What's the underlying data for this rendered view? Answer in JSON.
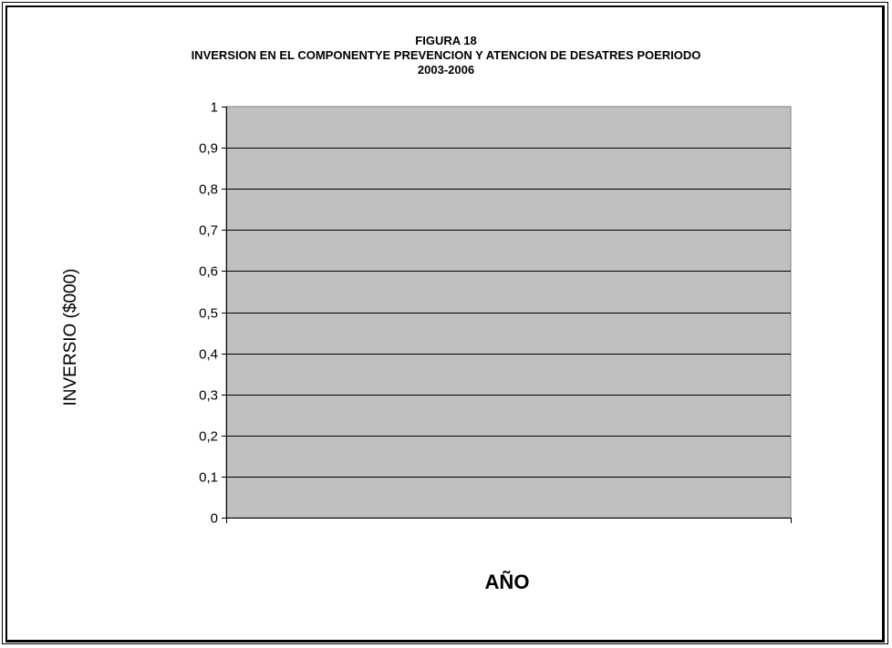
{
  "chart_data": {
    "type": "bar",
    "title_lines": [
      "FIGURA 18",
      "INVERSION  EN EL COMPONENTYE PREVENCION Y ATENCION DE DESATRES POERIODO",
      "2003-2006"
    ],
    "xlabel": "AÑO",
    "ylabel": "INVERSIO ($000)",
    "ylim": [
      0,
      1
    ],
    "yticks": [
      "0",
      "0,1",
      "0,2",
      "0,3",
      "0,4",
      "0,5",
      "0,6",
      "0,7",
      "0,8",
      "0,9",
      "1"
    ],
    "categories": [],
    "series": [],
    "grid": true,
    "colors": {
      "plot_area": "#c0c0c0",
      "gridline": "#000000",
      "plot_border": "#808080"
    }
  }
}
